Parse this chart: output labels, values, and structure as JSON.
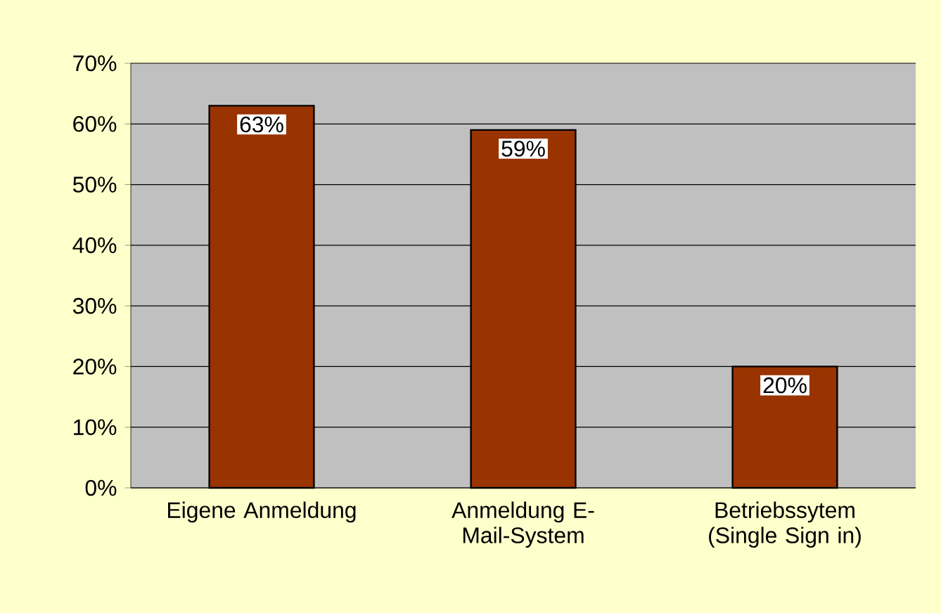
{
  "chart_data": {
    "type": "bar",
    "categories": [
      "Eigene Anmeldung",
      "Anmeldung E-Mail-System",
      "Betriebssytem (Single Sign in)"
    ],
    "values": [
      63,
      59,
      20
    ],
    "value_labels": [
      "63%",
      "59%",
      "20%"
    ],
    "color": "#993300",
    "ylim": [
      0,
      70
    ],
    "yticks": [
      {
        "value": 0,
        "label": "0%"
      },
      {
        "value": 10,
        "label": "10%"
      },
      {
        "value": 20,
        "label": "20%"
      },
      {
        "value": 30,
        "label": "30%"
      },
      {
        "value": 40,
        "label": "40%"
      },
      {
        "value": 50,
        "label": "50%"
      },
      {
        "value": 60,
        "label": "60%"
      },
      {
        "value": 70,
        "label": "70%"
      }
    ],
    "grid": "y"
  }
}
